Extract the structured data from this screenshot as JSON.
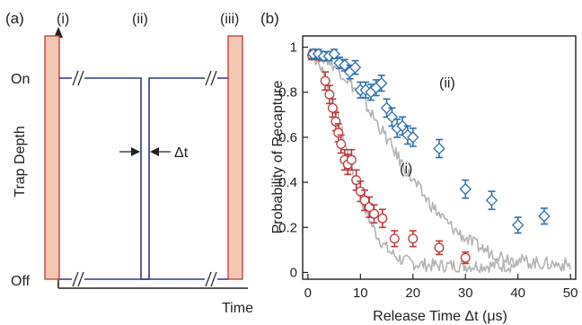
{
  "panel_a": {
    "label": "(a)",
    "region_labels": [
      "(i)",
      "(ii)",
      "(iii)"
    ],
    "ylabel": "Trap Depth",
    "xlabel": "Time",
    "level_on": "On",
    "level_off": "Off",
    "interval_label": "Δt",
    "colors": {
      "pulse_fill": "#f3c7b3",
      "pulse_stroke": "#c0393b",
      "trace": "#2e3a87"
    }
  },
  "chart_data": {
    "type": "scatter",
    "panel_label": "(b)",
    "xlabel": "Release Time Δt (μs)",
    "ylabel": "Probability of Recapture",
    "xlim": [
      -1,
      51
    ],
    "ylim": [
      -0.03,
      1.05
    ],
    "xticks": [
      0,
      10,
      20,
      30,
      40,
      50
    ],
    "yticks": [
      0,
      0.2,
      0.4,
      0.6,
      0.8,
      1
    ],
    "ytick_labels": [
      "0",
      "0.2",
      "0.4",
      "0.6",
      "0.8",
      "1"
    ],
    "grid": false,
    "legend": "none",
    "annotations": [
      {
        "text": "(i)",
        "x": 17.5,
        "y": 0.44
      },
      {
        "text": "(ii)",
        "x": 25,
        "y": 0.82
      }
    ],
    "series": [
      {
        "label": "(i)",
        "marker": "circle",
        "color": "#c0393b",
        "x": [
          0.8,
          1.6,
          2.6,
          3.3,
          4.1,
          4.7,
          5.3,
          5.8,
          6.3,
          7.0,
          7.6,
          8.3,
          9.2,
          10.0,
          10.8,
          11.7,
          12.6,
          14.2,
          16.5,
          20.0,
          25.0,
          30.0
        ],
        "y": [
          0.965,
          0.965,
          0.96,
          0.85,
          0.79,
          0.73,
          0.67,
          0.62,
          0.57,
          0.5,
          0.48,
          0.5,
          0.41,
          0.36,
          0.32,
          0.29,
          0.26,
          0.24,
          0.15,
          0.15,
          0.11,
          0.065
        ],
        "err": [
          0.02,
          0.02,
          0.02,
          0.04,
          0.04,
          0.04,
          0.04,
          0.04,
          0.04,
          0.045,
          0.045,
          0.045,
          0.045,
          0.045,
          0.045,
          0.045,
          0.04,
          0.04,
          0.035,
          0.035,
          0.03,
          0.025
        ]
      },
      {
        "label": "(ii)",
        "marker": "diamond",
        "color": "#2e6fad",
        "x": [
          1.0,
          2.0,
          3.0,
          4.0,
          5.0,
          6.0,
          7.0,
          8.0,
          9.0,
          10.0,
          11.0,
          12.0,
          13.0,
          14.0,
          15.0,
          16.0,
          17.0,
          18.0,
          19.0,
          20.0,
          25.0,
          30.0,
          35.0,
          40.0,
          45.0
        ],
        "y": [
          0.97,
          0.97,
          0.96,
          0.96,
          0.97,
          0.93,
          0.92,
          0.89,
          0.91,
          0.81,
          0.81,
          0.8,
          0.82,
          0.84,
          0.73,
          0.69,
          0.64,
          0.65,
          0.61,
          0.6,
          0.55,
          0.37,
          0.32,
          0.21,
          0.25
        ],
        "err": [
          0.02,
          0.02,
          0.02,
          0.02,
          0.02,
          0.025,
          0.025,
          0.03,
          0.03,
          0.035,
          0.035,
          0.035,
          0.035,
          0.035,
          0.04,
          0.04,
          0.04,
          0.04,
          0.04,
          0.04,
          0.04,
          0.04,
          0.04,
          0.035,
          0.035
        ]
      }
    ],
    "curves": [
      {
        "label": "(i)",
        "color": "#b3b3b3",
        "x_max": 40,
        "tau": 9.5,
        "floor": 0.03,
        "noise": 0.03
      },
      {
        "label": "(ii)",
        "color": "#b3b3b3",
        "x_max": 50,
        "tau": 21,
        "floor": 0.03,
        "noise": 0.03
      }
    ]
  }
}
